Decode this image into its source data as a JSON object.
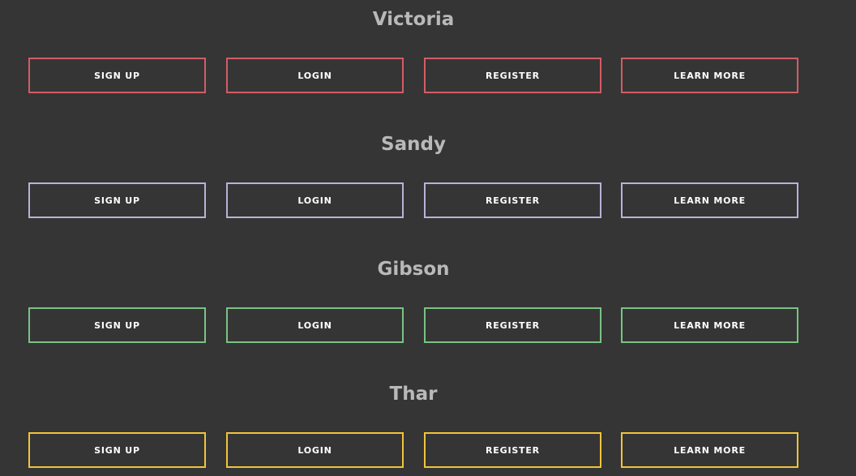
{
  "sections": [
    {
      "title": "Victoria",
      "accent_color": "#d25d65",
      "buttons": [
        "SIGN UP",
        "LOGIN",
        "REGISTER",
        "LEARN MORE"
      ]
    },
    {
      "title": "Sandy",
      "accent_color": "#b9b2d8",
      "buttons": [
        "SIGN UP",
        "LOGIN",
        "REGISTER",
        "LEARN MORE"
      ]
    },
    {
      "title": "Gibson",
      "accent_color": "#79c384",
      "buttons": [
        "SIGN UP",
        "LOGIN",
        "REGISTER",
        "LEARN MORE"
      ]
    },
    {
      "title": "Thar",
      "accent_color": "#f1c43b",
      "buttons": [
        "SIGN UP",
        "LOGIN",
        "REGISTER",
        "LEARN MORE"
      ]
    }
  ]
}
